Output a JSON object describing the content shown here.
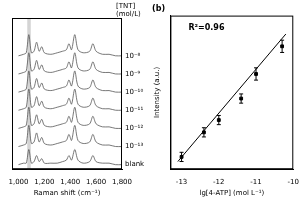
{
  "chart_data": [
    {
      "type": "line",
      "x_label": "Raman shift (cm⁻¹)",
      "annotations": [
        "[TNT]",
        "(mol/L)"
      ],
      "x": [
        1000,
        1040,
        1060,
        1080,
        1100,
        1120,
        1140,
        1160,
        1180,
        1200,
        1250,
        1300,
        1340,
        1370,
        1390,
        1410,
        1435,
        1460,
        1500,
        1550,
        1575,
        1600,
        1650,
        1700,
        1750,
        1800
      ],
      "series": [
        {
          "name": "10⁻⁸",
          "color": "#555555",
          "values": [
            75,
            76,
            77,
            89,
            77,
            78,
            84,
            78,
            81,
            77,
            76,
            77,
            78,
            79,
            83,
            79,
            89,
            79,
            77,
            78,
            83,
            78,
            76,
            76,
            75,
            75
          ]
        },
        {
          "name": "10⁻⁹",
          "color": "#555555",
          "values": [
            63,
            64,
            65,
            77,
            65,
            66,
            72,
            66,
            69,
            65,
            64,
            65,
            66,
            67,
            71,
            67,
            77,
            67,
            65,
            66,
            71,
            66,
            64,
            64,
            63,
            63
          ]
        },
        {
          "name": "10⁻¹⁰",
          "color": "#555555",
          "values": [
            51,
            52,
            53,
            65,
            53,
            54,
            60,
            54,
            57,
            53,
            52,
            53,
            54,
            55,
            59,
            55,
            65,
            55,
            53,
            54,
            59,
            54,
            52,
            52,
            51,
            51
          ]
        },
        {
          "name": "10⁻¹¹",
          "color": "#555555",
          "values": [
            39,
            40,
            41,
            53,
            41,
            42,
            48,
            42,
            45,
            41,
            40,
            41,
            42,
            43,
            47,
            43,
            53,
            43,
            41,
            42,
            47,
            42,
            40,
            40,
            39,
            39
          ]
        },
        {
          "name": "10⁻¹²",
          "color": "#555555",
          "values": [
            27,
            28,
            29,
            41,
            29,
            30,
            36,
            30,
            33,
            29,
            28,
            29,
            30,
            31,
            35,
            31,
            41,
            31,
            29,
            30,
            35,
            30,
            28,
            28,
            27,
            27
          ]
        },
        {
          "name": "10⁻¹³",
          "color": "#555555",
          "values": [
            15,
            16,
            17,
            29,
            17,
            18,
            24,
            18,
            21,
            17,
            16,
            17,
            18,
            19,
            23,
            19,
            29,
            19,
            17,
            18,
            23,
            18,
            16,
            16,
            15,
            15
          ]
        },
        {
          "name": "blank",
          "color": "#555555",
          "values": [
            3,
            4,
            4,
            13,
            4,
            5,
            9,
            5,
            7,
            4,
            4,
            4,
            5,
            6,
            9,
            6,
            13,
            6,
            4,
            5,
            9,
            5,
            4,
            4,
            3,
            3
          ]
        }
      ],
      "highlight": [
        1068,
        1095
      ],
      "xlim": [
        950,
        1800
      ],
      "xticks": [
        1000,
        1200,
        1400,
        1600,
        1800
      ],
      "ylim": [
        0,
        100
      ],
      "yticks": [],
      "grid": false,
      "tick_labels": "x"
    },
    {
      "type": "scatter",
      "title": "(b)",
      "x_label": "lg[4-ATP] (mol L⁻¹)",
      "y_label": "Intensity (a.u.)",
      "annotations": [
        "R²=0.96"
      ],
      "x": [
        -13,
        -12.4,
        -12,
        -11.4,
        -11,
        -10.3
      ],
      "values": [
        8,
        24,
        32,
        46,
        62,
        80
      ],
      "errors": [
        3,
        3,
        3,
        3,
        4,
        4
      ],
      "fit": {
        "x": [
          -13.1,
          -10.2
        ],
        "values": [
          5,
          88
        ]
      },
      "color": "#000000",
      "marker": "square",
      "xlim": [
        -13.3,
        -10
      ],
      "xticks": [
        -13,
        -12,
        -11,
        -10
      ],
      "ylim": [
        0,
        100
      ],
      "yticks": [],
      "grid": false,
      "tick_labels": "x"
    }
  ]
}
